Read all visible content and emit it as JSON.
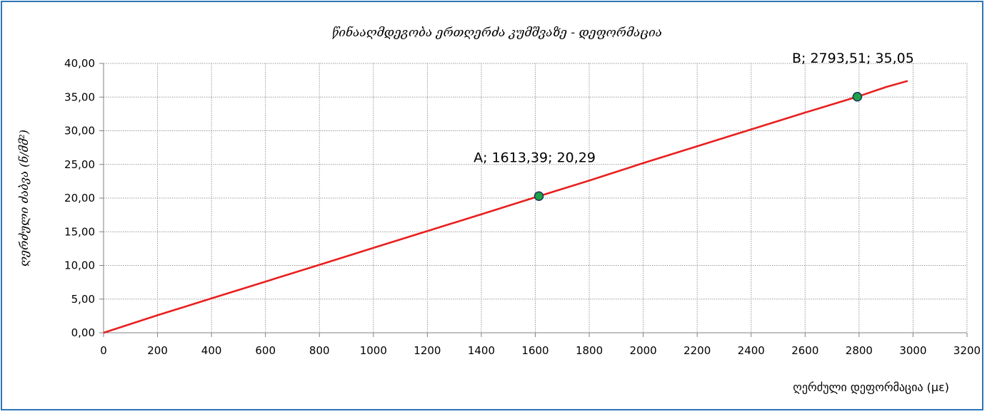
{
  "chart_data": {
    "type": "line",
    "title": "წინააღმდეგობა ერთღერძა კუმშვაზე - დეფორმაცია",
    "xlabel": "ღერძული დეფორმაცია (με)",
    "ylabel": "ღერძული ძაბვა (ნ/მმ²)",
    "xlim": [
      0,
      3200
    ],
    "ylim": [
      0,
      40
    ],
    "x_ticks": [
      "0",
      "200",
      "400",
      "600",
      "800",
      "1000",
      "1200",
      "1400",
      "1600",
      "1800",
      "2000",
      "2200",
      "2400",
      "2600",
      "2800",
      "3000",
      "3200"
    ],
    "y_ticks": [
      "0,00",
      "5,00",
      "10,00",
      "15,00",
      "20,00",
      "25,00",
      "30,00",
      "35,00",
      "40,00"
    ],
    "grid": true,
    "series": [
      {
        "color": "#e8201f",
        "x": [
          0,
          200,
          400,
          600,
          800,
          1000,
          1200,
          1400,
          1613.39,
          1800,
          2000,
          2200,
          2400,
          2600,
          2793.51,
          2900,
          2980
        ],
        "y": [
          0,
          2.6,
          5.1,
          7.6,
          10.1,
          12.6,
          15.1,
          17.6,
          20.29,
          22.6,
          25.2,
          27.7,
          30.2,
          32.7,
          35.05,
          36.5,
          37.4
        ]
      }
    ],
    "annotations": [
      {
        "label": "A; 1613,39; 20,29",
        "x": 1613.39,
        "y": 20.29,
        "marker_color": "#1fa344"
      },
      {
        "label": "B; 2793,51; 35,05",
        "x": 2793.51,
        "y": 35.05,
        "marker_color": "#1fa344"
      }
    ]
  }
}
